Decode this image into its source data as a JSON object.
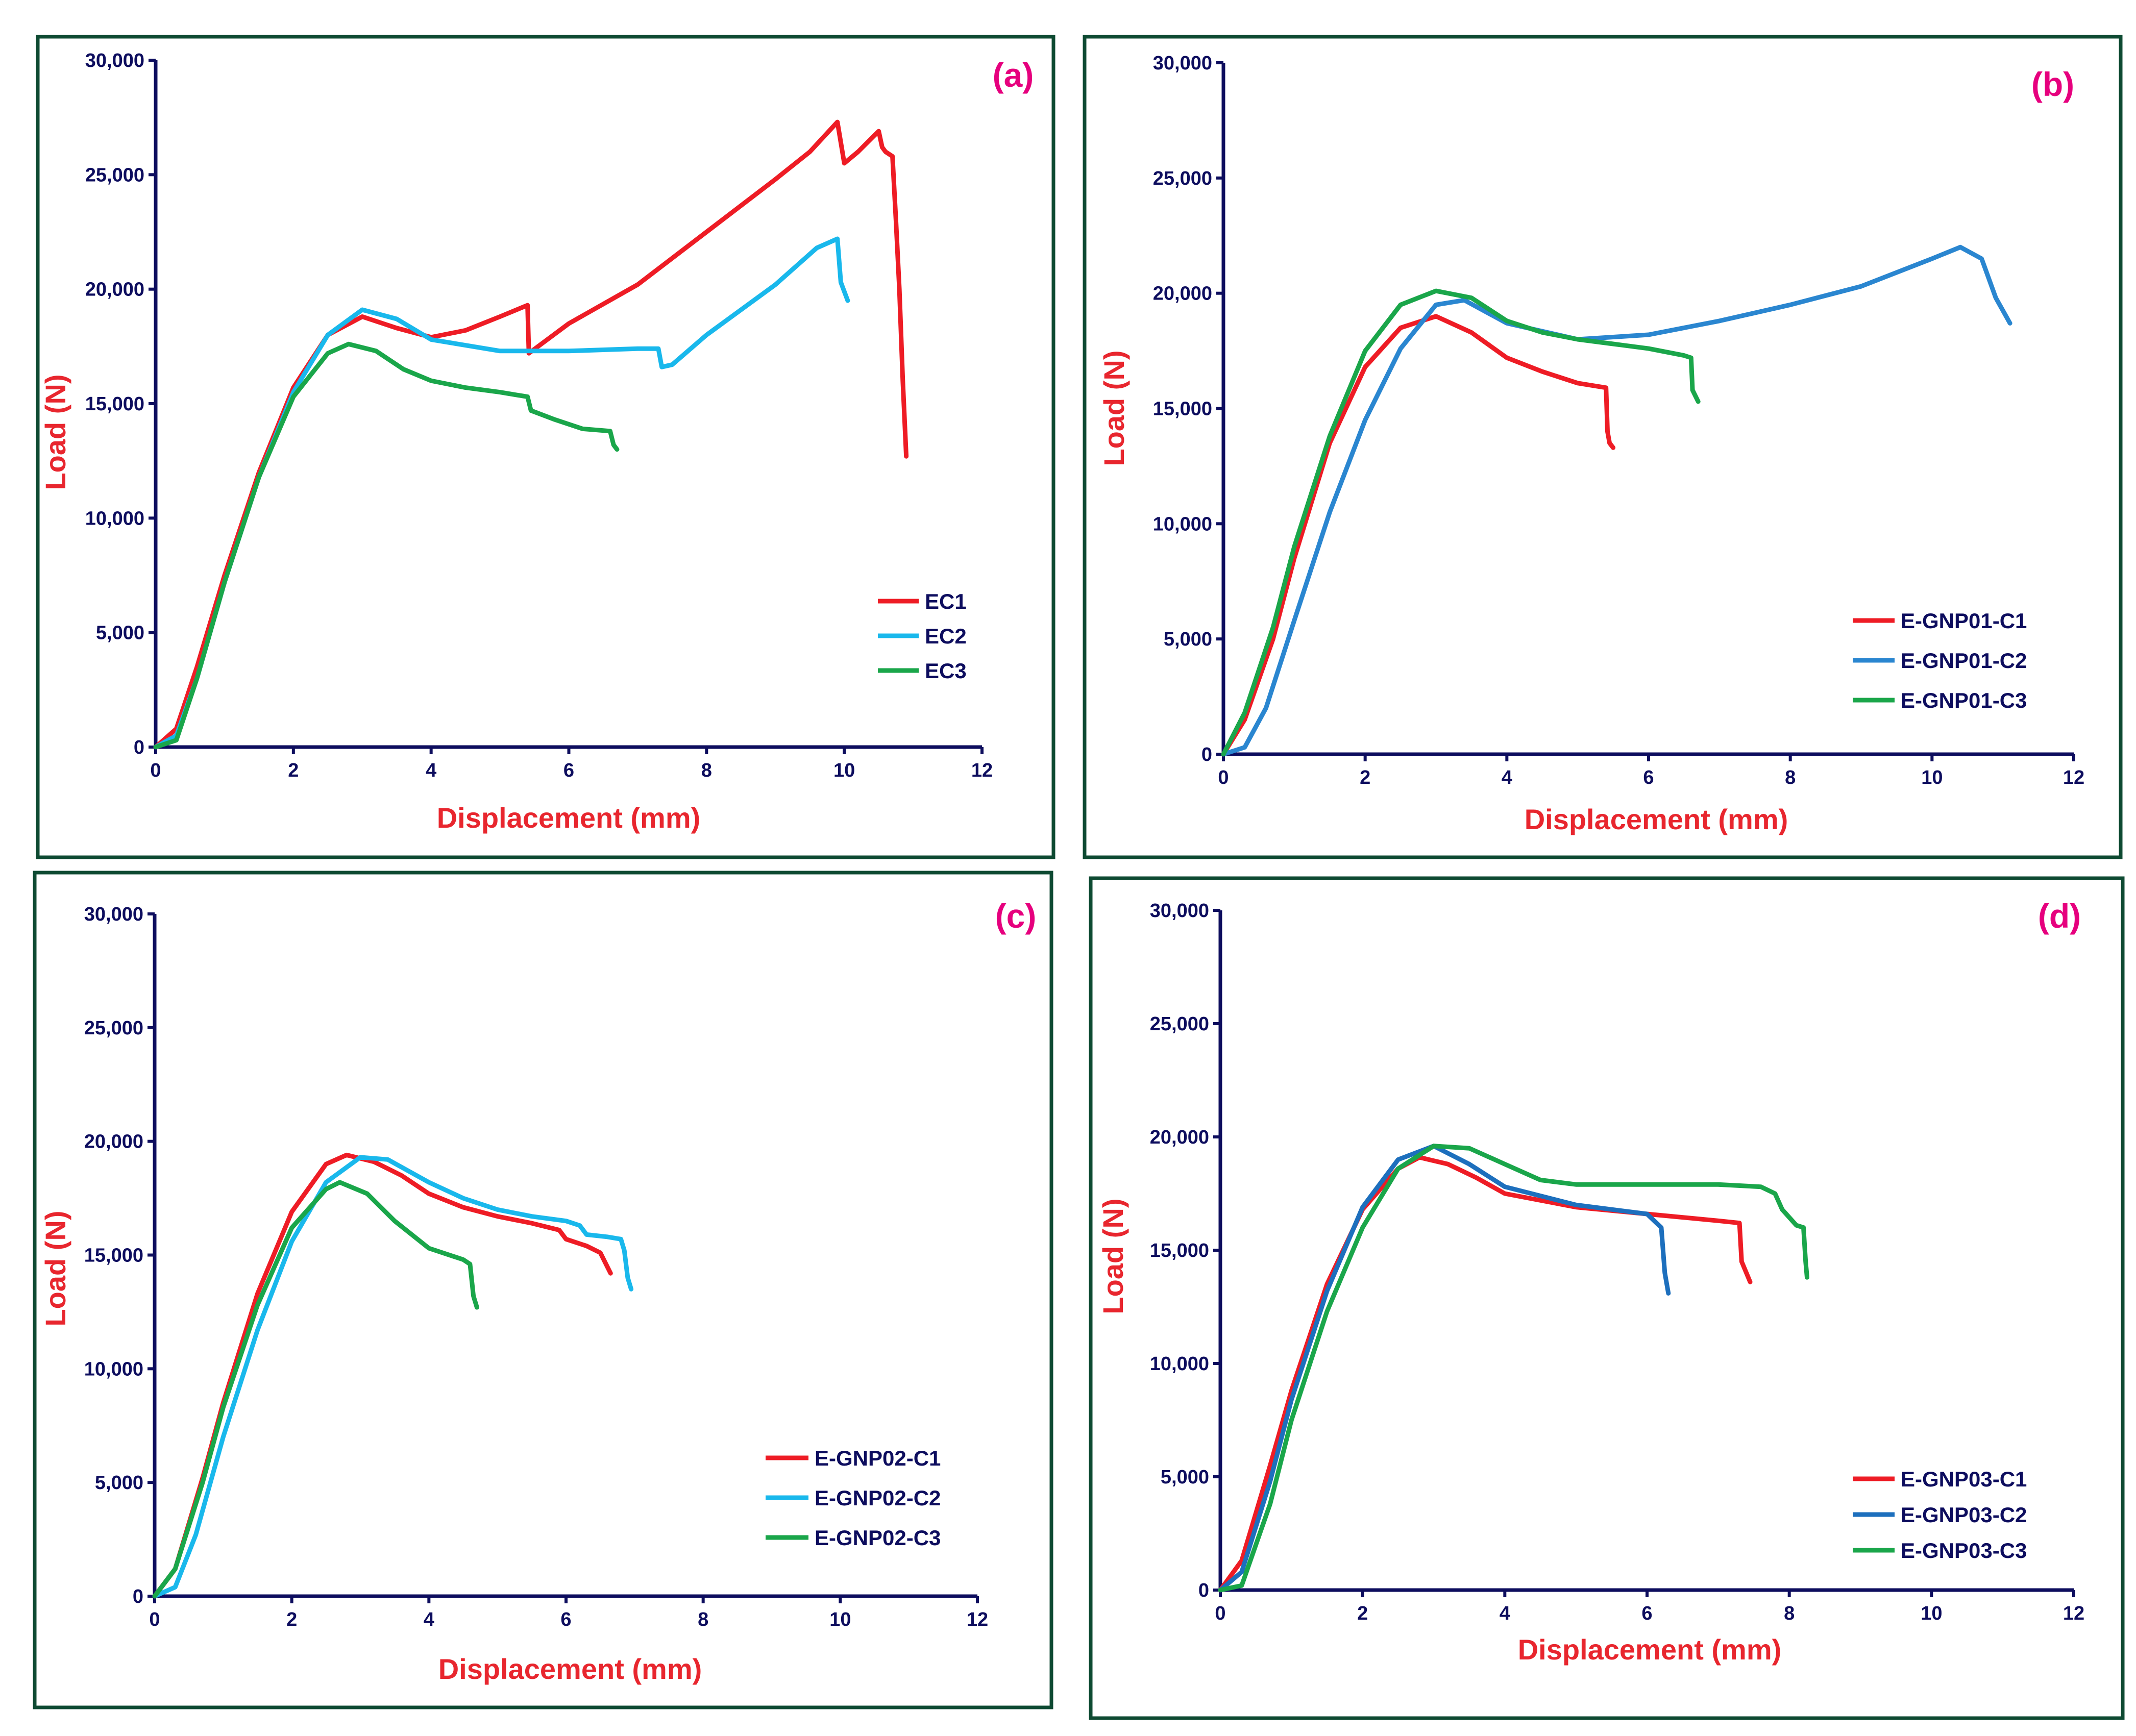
{
  "figure_colors": {
    "frame": "#0e4a32",
    "axis": "#0d0d5e",
    "axis_title": "#e8262e",
    "panel_label": "#e6007e"
  },
  "chart_data": [
    {
      "type": "line",
      "panel_label": "(a)",
      "xlabel": "Displacement (mm)",
      "ylabel": "Load (N)",
      "xlim": [
        0,
        12
      ],
      "ylim": [
        0,
        30000
      ],
      "x_ticks": [
        "0",
        "2",
        "4",
        "6",
        "8",
        "10",
        "12"
      ],
      "y_ticks": [
        "0",
        "5,000",
        "10,000",
        "15,000",
        "20,000",
        "25,000",
        "30,000"
      ],
      "series": [
        {
          "name": "EC1",
          "color": "#ee1c25",
          "x": [
            0,
            0.3,
            0.6,
            1.0,
            1.5,
            2.0,
            2.5,
            3.0,
            3.5,
            4.0,
            4.5,
            5.0,
            5.4,
            5.42,
            6.0,
            7.0,
            8.0,
            9.0,
            9.5,
            9.9,
            10.0,
            10.2,
            10.5,
            10.55,
            10.6,
            10.7,
            10.75,
            10.8,
            10.85,
            10.9
          ],
          "y": [
            0,
            800,
            3500,
            7500,
            12000,
            15700,
            18000,
            18800,
            18300,
            17900,
            18200,
            18800,
            19300,
            17200,
            18500,
            20200,
            22500,
            24800,
            26000,
            27300,
            25500,
            26000,
            26900,
            26200,
            26000,
            25800,
            23000,
            20000,
            16000,
            12700
          ]
        },
        {
          "name": "EC2",
          "color": "#19b8ec",
          "x": [
            0,
            0.3,
            0.6,
            1.0,
            1.5,
            2.0,
            2.5,
            3.0,
            3.5,
            4.0,
            5.0,
            6.0,
            7.0,
            7.3,
            7.35,
            7.5,
            8.0,
            9.0,
            9.6,
            9.9,
            9.95,
            10.05
          ],
          "y": [
            0,
            500,
            3000,
            7200,
            11800,
            15500,
            18000,
            19100,
            18700,
            17800,
            17300,
            17300,
            17400,
            17400,
            16600,
            16700,
            18000,
            20200,
            21800,
            22200,
            20300,
            19500
          ]
        },
        {
          "name": "EC3",
          "color": "#1aa64a",
          "x": [
            0,
            0.3,
            0.6,
            1.0,
            1.5,
            2.0,
            2.5,
            2.8,
            3.2,
            3.6,
            4.0,
            4.5,
            5.0,
            5.4,
            5.45,
            5.8,
            6.2,
            6.6,
            6.65,
            6.7
          ],
          "y": [
            0,
            300,
            3000,
            7200,
            11800,
            15300,
            17200,
            17600,
            17300,
            16500,
            16000,
            15700,
            15500,
            15300,
            14700,
            14300,
            13900,
            13800,
            13200,
            13000
          ]
        }
      ]
    },
    {
      "type": "line",
      "panel_label": "(b)",
      "xlabel": "Displacement (mm)",
      "ylabel": "Load (N)",
      "xlim": [
        0,
        12
      ],
      "ylim": [
        0,
        30000
      ],
      "x_ticks": [
        "0",
        "2",
        "4",
        "6",
        "8",
        "10",
        "12"
      ],
      "y_ticks": [
        "0",
        "5,000",
        "10,000",
        "15,000",
        "20,000",
        "25,000",
        "30,000"
      ],
      "series": [
        {
          "name": "E-GNP01-C1",
          "color": "#ee1c25",
          "x": [
            0,
            0.3,
            0.7,
            1.0,
            1.5,
            2.0,
            2.5,
            3.0,
            3.5,
            4.0,
            4.5,
            5.0,
            5.4,
            5.42,
            5.45,
            5.5
          ],
          "y": [
            0,
            1500,
            5000,
            8500,
            13500,
            16800,
            18500,
            19000,
            18300,
            17200,
            16600,
            16100,
            15900,
            14000,
            13500,
            13300
          ]
        },
        {
          "name": "E-GNP01-C2",
          "color": "#2a86d0",
          "x": [
            0,
            0.3,
            0.6,
            1.0,
            1.5,
            2.0,
            2.5,
            3.0,
            3.4,
            4.0,
            5.0,
            6.0,
            7.0,
            8.0,
            9.0,
            10.0,
            10.4,
            10.7,
            10.9,
            11.1
          ],
          "y": [
            0,
            300,
            2000,
            5800,
            10500,
            14500,
            17600,
            19500,
            19700,
            18700,
            18000,
            18200,
            18800,
            19500,
            20300,
            21500,
            22000,
            21500,
            19800,
            18700
          ]
        },
        {
          "name": "E-GNP01-C3",
          "color": "#1aa64a",
          "x": [
            0,
            0.3,
            0.7,
            1.0,
            1.5,
            2.0,
            2.5,
            3.0,
            3.5,
            4.0,
            4.5,
            5.0,
            5.5,
            6.0,
            6.5,
            6.6,
            6.62,
            6.7
          ],
          "y": [
            0,
            1800,
            5500,
            9000,
            13800,
            17500,
            19500,
            20100,
            19800,
            18800,
            18300,
            18000,
            17800,
            17600,
            17300,
            17200,
            15800,
            15300
          ]
        }
      ]
    },
    {
      "type": "line",
      "panel_label": "(c)",
      "xlabel": "Displacement (mm)",
      "ylabel": "Load (N)",
      "xlim": [
        0,
        12
      ],
      "ylim": [
        0,
        30000
      ],
      "x_ticks": [
        "0",
        "2",
        "4",
        "6",
        "8",
        "10",
        "12"
      ],
      "y_ticks": [
        "0",
        "5,000",
        "10,000",
        "15,000",
        "20,000",
        "25,000",
        "30,000"
      ],
      "series": [
        {
          "name": "E-GNP02-C1",
          "color": "#ee1c25",
          "x": [
            0,
            0.3,
            0.7,
            1.0,
            1.5,
            2.0,
            2.5,
            2.8,
            3.2,
            3.6,
            4.0,
            4.5,
            5.0,
            5.5,
            5.9,
            6.0,
            6.3,
            6.5,
            6.6,
            6.65
          ],
          "y": [
            0,
            1200,
            5200,
            8500,
            13300,
            16900,
            19000,
            19400,
            19100,
            18500,
            17700,
            17100,
            16700,
            16400,
            16100,
            15700,
            15400,
            15100,
            14500,
            14200
          ]
        },
        {
          "name": "E-GNP02-C2",
          "color": "#19b8ec",
          "x": [
            0,
            0.3,
            0.6,
            1.0,
            1.5,
            2.0,
            2.5,
            3.0,
            3.4,
            4.0,
            4.5,
            5.0,
            5.5,
            6.0,
            6.2,
            6.3,
            6.6,
            6.8,
            6.85,
            6.9,
            6.95
          ],
          "y": [
            0,
            400,
            2700,
            7000,
            11700,
            15600,
            18200,
            19300,
            19200,
            18200,
            17500,
            17000,
            16700,
            16500,
            16300,
            15900,
            15800,
            15700,
            15200,
            14000,
            13500
          ]
        },
        {
          "name": "E-GNP02-C3",
          "color": "#1aa64a",
          "x": [
            0,
            0.3,
            0.7,
            1.0,
            1.5,
            2.0,
            2.5,
            2.7,
            3.1,
            3.5,
            4.0,
            4.5,
            4.6,
            4.65,
            4.7
          ],
          "y": [
            0,
            1200,
            5000,
            8300,
            12800,
            16200,
            17900,
            18200,
            17700,
            16500,
            15300,
            14800,
            14600,
            13200,
            12700
          ]
        }
      ]
    },
    {
      "type": "line",
      "panel_label": "(d)",
      "xlabel": "Displacement (mm)",
      "ylabel": "Load (N)",
      "xlim": [
        0,
        12
      ],
      "ylim": [
        0,
        30000
      ],
      "x_ticks": [
        "0",
        "2",
        "4",
        "6",
        "8",
        "10",
        "12"
      ],
      "y_ticks": [
        "0",
        "5,000",
        "10,000",
        "15,000",
        "20,000",
        "25,000",
        "30,000"
      ],
      "series": [
        {
          "name": "E-GNP03-C1",
          "color": "#ee1c25",
          "x": [
            0,
            0.3,
            0.7,
            1.0,
            1.5,
            2.0,
            2.5,
            2.8,
            3.2,
            3.6,
            4.0,
            5.0,
            6.0,
            7.0,
            7.3,
            7.33,
            7.45
          ],
          "y": [
            0,
            1300,
            5500,
            8800,
            13500,
            16800,
            18600,
            19100,
            18800,
            18200,
            17500,
            16900,
            16600,
            16300,
            16200,
            14500,
            13600
          ]
        },
        {
          "name": "E-GNP03-C2",
          "color": "#1d6fbd",
          "x": [
            0,
            0.3,
            0.7,
            1.0,
            1.5,
            2.0,
            2.5,
            3.0,
            3.5,
            4.0,
            5.0,
            6.0,
            6.2,
            6.25,
            6.3
          ],
          "y": [
            0,
            800,
            4800,
            8400,
            13200,
            16900,
            19000,
            19600,
            18800,
            17800,
            17000,
            16600,
            16000,
            14000,
            13100
          ]
        },
        {
          "name": "E-GNP03-C3",
          "color": "#1aa64a",
          "x": [
            0,
            0.3,
            0.7,
            1.0,
            1.5,
            2.0,
            2.5,
            3.0,
            3.5,
            4.0,
            4.5,
            5.0,
            6.0,
            7.0,
            7.6,
            7.8,
            7.9,
            8.1,
            8.2,
            8.23,
            8.25
          ],
          "y": [
            0,
            200,
            3800,
            7500,
            12300,
            16000,
            18600,
            19600,
            19500,
            18800,
            18100,
            17900,
            17900,
            17900,
            17800,
            17500,
            16800,
            16100,
            16000,
            14500,
            13800
          ]
        }
      ]
    }
  ]
}
